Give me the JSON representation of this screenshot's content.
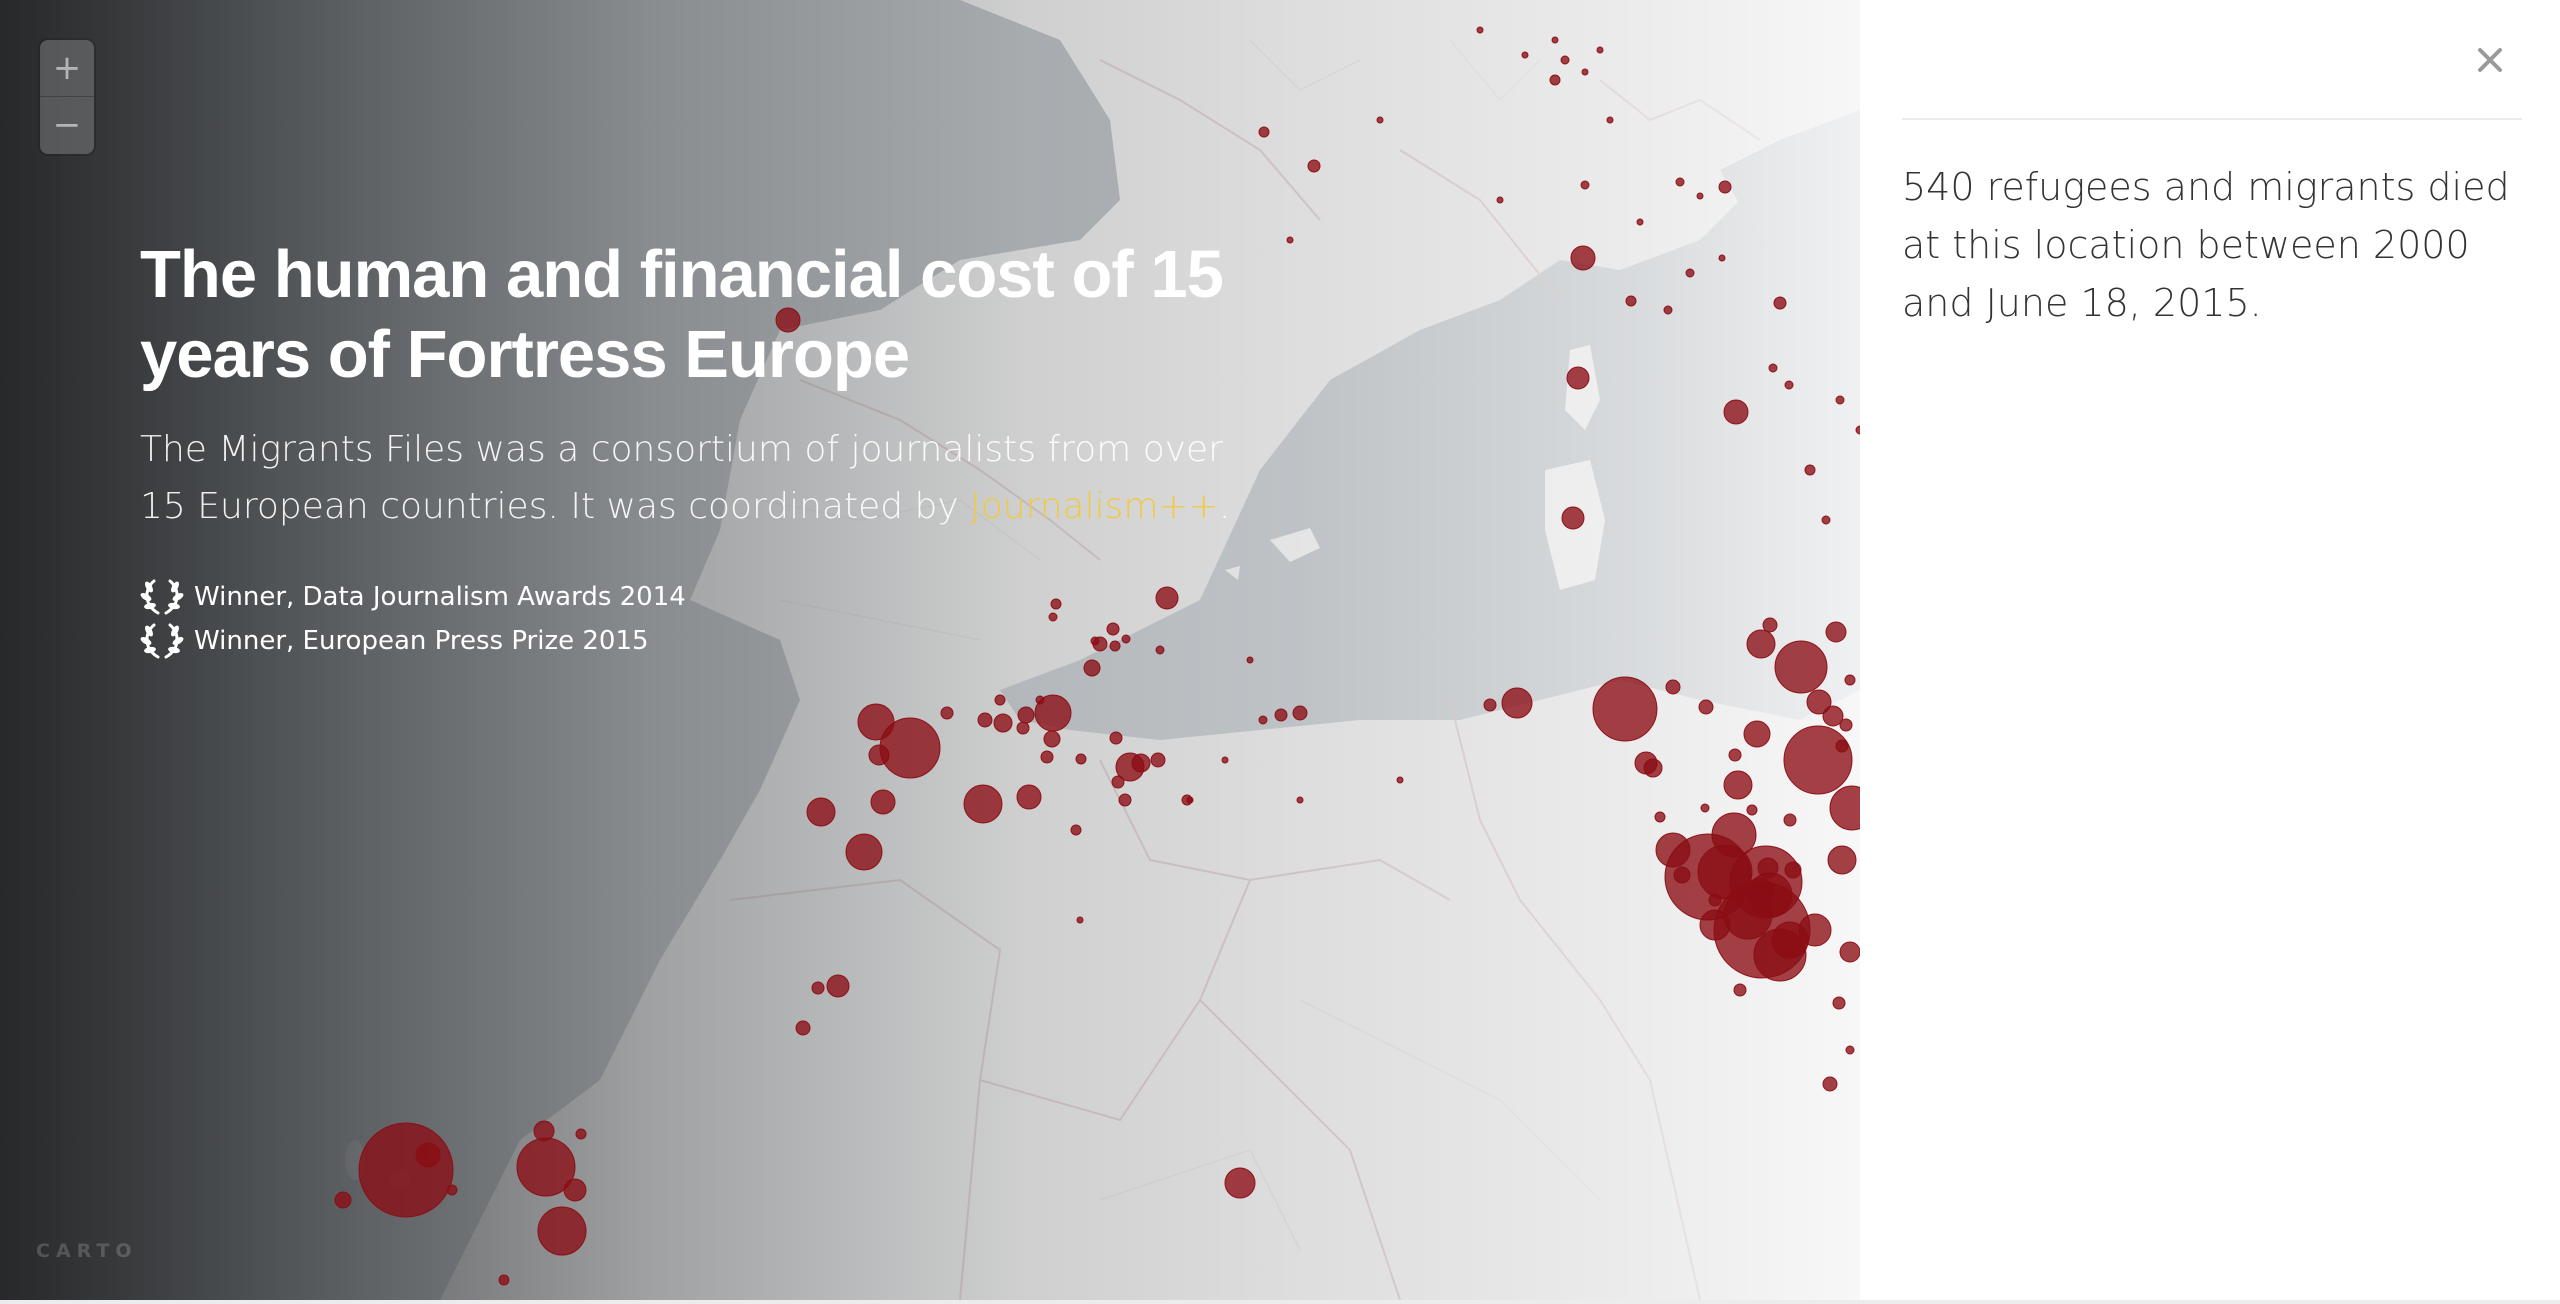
{
  "zoom": {
    "in_label": "+",
    "out_label": "−"
  },
  "hero": {
    "title": "The human and financial cost of 15 years of Fortress Europe",
    "subtitle": "The Migrants Files was a consortium of journalists from over 15 European countries. It was coordinated by ",
    "link_text": "Journalism++",
    "subtitle_end": "."
  },
  "awards": [
    {
      "label": "Winner, Data Journalism Awards 2014",
      "icon": "laurel-wreath-icon"
    },
    {
      "label": "Winner, European Press Prize 2015",
      "icon": "laurel-wreath-icon"
    }
  ],
  "attribution": "CARTO",
  "panel": {
    "info": "540 refugees and migrants died at this location between 2000 and June 18, 2015.",
    "close_icon": "close-icon"
  },
  "colors": {
    "marker": "#8b0d14",
    "link": "#f0c945",
    "sea": "#b9bec2",
    "land": "#dcdcdc"
  }
}
